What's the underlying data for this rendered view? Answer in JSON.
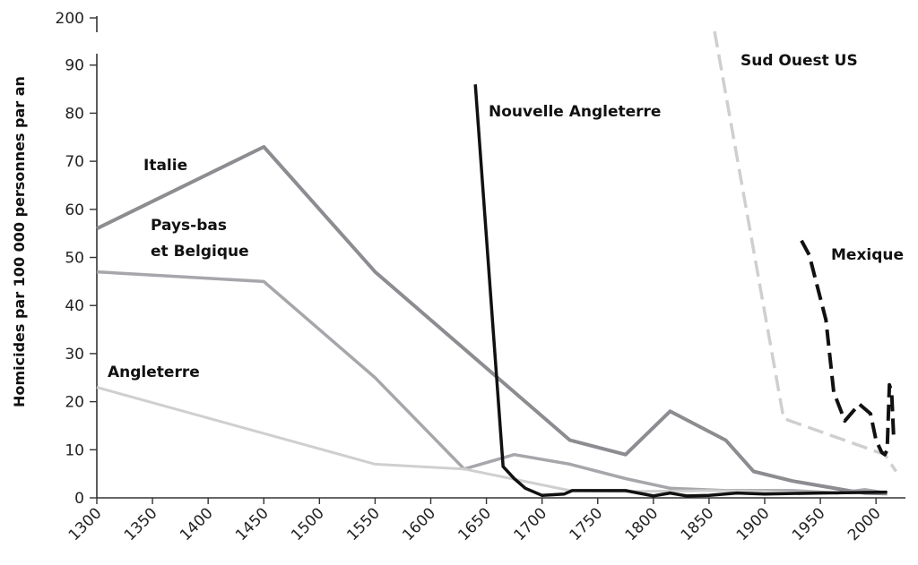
{
  "chart_data": {
    "type": "line",
    "title": "",
    "xlabel": "",
    "ylabel": "Homicides par 100 000 personnes par an",
    "xlim": [
      1300,
      2020
    ],
    "ylim": [
      0,
      95
    ],
    "y_axis_break": true,
    "y_break_top_label": "200",
    "grid": false,
    "legend": "inline labels",
    "x_ticks": [
      "1300",
      "1350",
      "1400",
      "1450",
      "1500",
      "1550",
      "1600",
      "1650",
      "1700",
      "1750",
      "1800",
      "1850",
      "1900",
      "1950",
      "2000"
    ],
    "y_ticks": [
      "0",
      "10",
      "20",
      "30",
      "40",
      "50",
      "60",
      "70",
      "80",
      "90"
    ],
    "series": [
      {
        "name": "Italie",
        "color": "#8c8c91",
        "style": "solid",
        "x": [
          1300,
          1450,
          1550,
          1725,
          1775,
          1815,
          1865,
          1890,
          1925,
          1975,
          1990,
          2010
        ],
        "y": [
          56,
          73,
          47,
          12,
          9,
          18,
          12,
          5.5,
          3.5,
          1.5,
          1,
          0.9
        ]
      },
      {
        "name": "Pays-bas\net Belgique",
        "color": "#a6a6ab",
        "style": "solid",
        "x": [
          1300,
          1450,
          1550,
          1630,
          1675,
          1725,
          1775,
          1815,
          1865,
          1925,
          1965,
          1990,
          2010
        ],
        "y": [
          47,
          45,
          25,
          6,
          9,
          7,
          4,
          2,
          1.5,
          1.5,
          1,
          1.7,
          1
        ]
      },
      {
        "name": "Angleterre",
        "color": "#cfcfcf",
        "style": "solid",
        "x": [
          1300,
          1550,
          1630,
          1725,
          1775,
          1850,
          1900,
          1950,
          2010
        ],
        "y": [
          23,
          7,
          6,
          1.5,
          1.3,
          1.5,
          1.3,
          1,
          1.2
        ]
      },
      {
        "name": "Nouvelle Angleterre",
        "color": "#111111",
        "style": "solid",
        "x": [
          1640,
          1665,
          1675,
          1685,
          1700,
          1720,
          1727,
          1750,
          1775,
          1800,
          1815,
          1830,
          1850,
          1875,
          1900,
          1950,
          2010
        ],
        "y": [
          86,
          6.5,
          4,
          2,
          0.5,
          0.8,
          1.5,
          1.5,
          1.5,
          0.4,
          1,
          0.4,
          0.5,
          1,
          0.8,
          1,
          1.2
        ]
      },
      {
        "name": "Sud Ouest US",
        "color": "#cfcfcf",
        "style": "dashed",
        "x": [
          1855,
          1917,
          2008,
          2018
        ],
        "y": [
          97,
          16.5,
          9,
          5.5
        ]
      },
      {
        "name": "Mexique",
        "color": "#111111",
        "style": "dashed",
        "x": [
          1933,
          1940,
          1955,
          1962,
          1972,
          1985,
          1995,
          2000,
          2005,
          2008,
          2010,
          2012,
          2014,
          2016
        ],
        "y": [
          53.5,
          50.5,
          37,
          22,
          16,
          19.5,
          17.5,
          12,
          9.5,
          9,
          10,
          23.5,
          22,
          12
        ]
      }
    ]
  }
}
